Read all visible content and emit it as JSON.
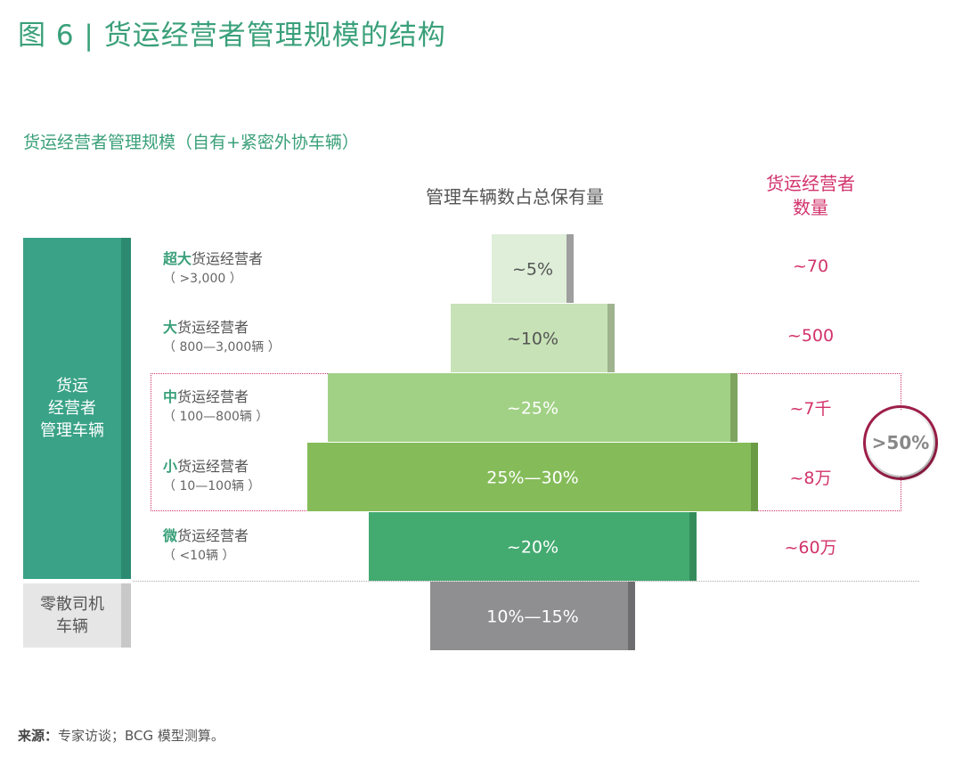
{
  "title": "图 6 | 货运经营者管理规模的结构",
  "subtitle": "货运经营者管理规模（自有+紧密外协车辆）",
  "column_headers": {
    "share": "管理车辆数占总保有量",
    "count_line1": "货运经营者",
    "count_line2": "数量"
  },
  "groups": {
    "managed_line1": "货运",
    "managed_line2": "经营者",
    "managed_line3": "管理车辆",
    "loose_line1": "零散司机",
    "loose_line2": "车辆"
  },
  "tiers": [
    {
      "prefix": "超大",
      "name": "货运经营者",
      "range": "（ >3,000 ）"
    },
    {
      "prefix": "大",
      "name": "货运经营者",
      "range": "（ 800—3,000辆 ）"
    },
    {
      "prefix": "中",
      "name": "货运经营者",
      "range": "（ 100—800辆 ）"
    },
    {
      "prefix": "小",
      "name": "货运经营者",
      "range": "（ 10—100辆 ）"
    },
    {
      "prefix": "微",
      "name": "货运经营者",
      "range": "（ <10辆 ）"
    }
  ],
  "callout": ">50%",
  "source": {
    "label": "来源：",
    "text": "专家访谈；BCG 模型测算。"
  },
  "chart_data": {
    "type": "bar",
    "categories": [
      "超大货运经营者",
      "大货运经营者",
      "中货运经营者",
      "小货运经营者",
      "微货运经营者",
      "零散司机车辆"
    ],
    "share_labels": [
      "~5%",
      "~10%",
      "~25%",
      "25%—30%",
      "~20%",
      "10%—15%"
    ],
    "share_values": [
      5,
      10,
      25,
      27.5,
      20,
      12.5
    ],
    "count_labels": [
      "~70",
      "~500",
      "~7千",
      "~8万",
      "~60万",
      ""
    ],
    "colors": [
      "#deeed8",
      "#c7e2b6",
      "#a1d185",
      "#85bc59",
      "#43aa70",
      "#8f8f91"
    ],
    "edge_colors": [
      "#9e9e9e",
      "#9fb38e",
      "#7ea460",
      "#6b9b43",
      "#358c5b",
      "#6e6e70"
    ],
    "label_colors": [
      "#555555",
      "#555555",
      "#ffffff",
      "#ffffff",
      "#ffffff",
      "#ffffff"
    ],
    "legend": "none",
    "grid": false
  }
}
